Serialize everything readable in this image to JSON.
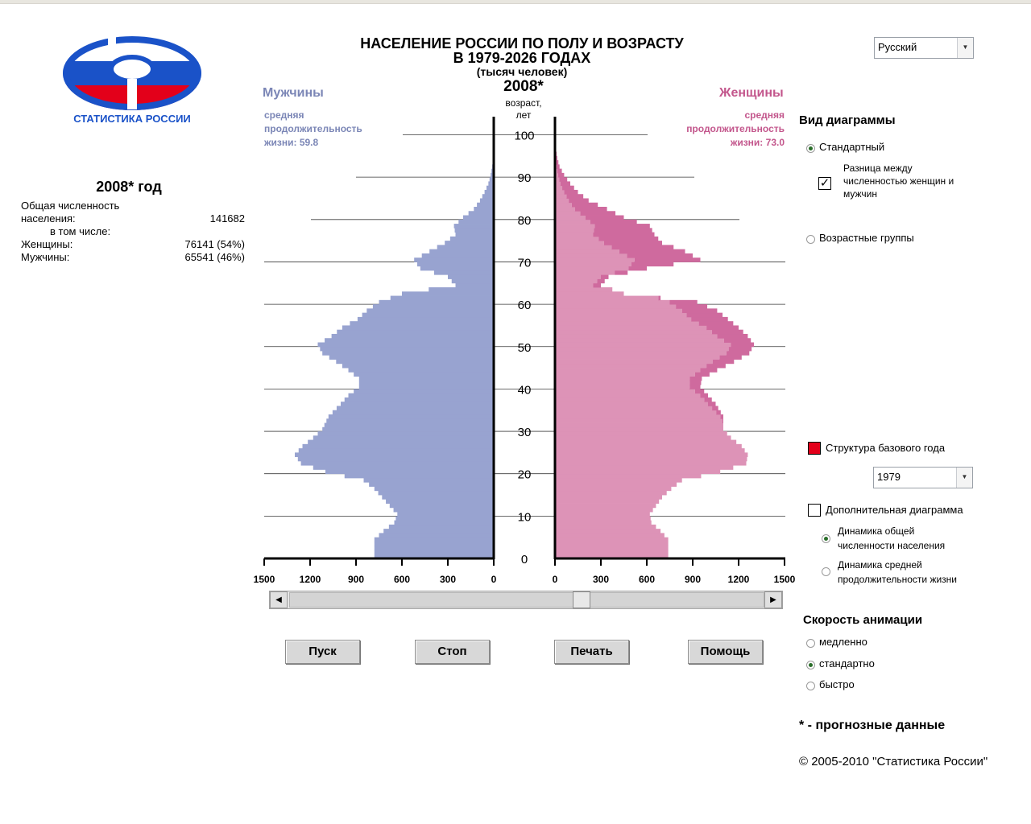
{
  "logo": {
    "text": "СТАТИСТИКА РОССИИ",
    "colors": {
      "blue": "#1a52c8",
      "red": "#e3001a",
      "white": "#ffffff"
    }
  },
  "header": {
    "title_line1": "НАСЕЛЕНИЕ РОССИИ ПО ПОЛУ И ВОЗРАСТУ",
    "title_line2": "В 1979-2026 ГОДАХ",
    "subtitle": "(тысяч человек)",
    "year": "2008*",
    "age_label": "возраст,\nлет"
  },
  "language_select": {
    "value": "Русский"
  },
  "men": {
    "label": "Мужчины",
    "life_label": "средняя продолжительность жизни:",
    "life_value": "59.8",
    "color": "#98a3d0"
  },
  "women": {
    "label": "Женщины",
    "life_label": "средняя продолжительность жизни:",
    "life_value": "73.0",
    "color": "#dd93b7",
    "excess_color": "#cf6a9e"
  },
  "stats": {
    "title": "2008* год",
    "total_label": "Общая численность населения:",
    "total_value": "141682",
    "incl_label": "в том числе:",
    "women_label": "Женщины:",
    "women_value": "76141 (54%)",
    "men_label": "Мужчины:",
    "men_value": "65541 (46%)"
  },
  "chart_type": {
    "title": "Вид диаграммы",
    "standard_label": "Стандартный",
    "standard_selected": true,
    "difference_label": "Разница между численностью женщин и мужчин",
    "difference_checked": true,
    "age_groups_label": "Возрастные группы",
    "age_groups_selected": false
  },
  "base_year": {
    "label": "Структура базового года",
    "checked": true,
    "color": "#e3001a",
    "value": "1979"
  },
  "extra_chart": {
    "label": "Дополнительная диаграмма",
    "checked": false,
    "total_dynamics_label": "Динамика общей численности населения",
    "total_dynamics_selected": true,
    "life_dynamics_label": "Динамика средней продолжительности жизни",
    "life_dynamics_selected": false
  },
  "animation_speed": {
    "title": "Скорость анимации",
    "slow": "медленно",
    "standard": "стандартно",
    "fast": "быстро",
    "selected": "standard"
  },
  "buttons": {
    "start": "Пуск",
    "stop": "Стоп",
    "print": "Печать",
    "help": "Помощь"
  },
  "timeline": {
    "min_year": 1979,
    "max_year": 2026,
    "current_year": 2008
  },
  "footnote": "* - прогнозные данные",
  "copyright": "© 2005-2010 \"Статистика России\"",
  "chart_data": {
    "type": "bar",
    "orientation": "population-pyramid",
    "x_unit": "тысяч человек",
    "xlim": [
      0,
      1500
    ],
    "x_ticks": [
      1500,
      1200,
      900,
      600,
      300,
      0
    ],
    "x_ticks_right": [
      0,
      300,
      600,
      900,
      1200,
      1500
    ],
    "y_ticks": [
      0,
      10,
      20,
      30,
      40,
      50,
      60,
      70,
      80,
      90,
      100
    ],
    "ylim": [
      0,
      100
    ],
    "age_key_points": [
      0,
      4,
      6,
      8,
      10,
      12,
      14,
      16,
      18,
      20,
      22,
      24,
      26,
      28,
      30,
      33,
      36,
      38,
      40,
      42,
      44,
      46,
      48,
      50,
      52,
      54,
      56,
      58,
      60,
      62,
      64,
      66,
      68,
      70,
      72,
      74,
      76,
      78,
      80,
      82,
      84,
      86,
      88,
      90,
      92,
      94,
      96,
      98,
      100
    ],
    "men": [
      780,
      780,
      720,
      650,
      630,
      680,
      730,
      780,
      850,
      1100,
      1260,
      1300,
      1250,
      1180,
      1120,
      1080,
      1000,
      950,
      880,
      880,
      950,
      1030,
      1120,
      1150,
      1060,
      990,
      890,
      830,
      750,
      600,
      250,
      300,
      480,
      520,
      420,
      320,
      250,
      260,
      200,
      130,
      90,
      60,
      35,
      20,
      10,
      5,
      3,
      1,
      0
    ],
    "women": [
      740,
      740,
      690,
      630,
      620,
      660,
      700,
      760,
      830,
      1080,
      1250,
      1260,
      1220,
      1150,
      1100,
      1100,
      1050,
      1000,
      950,
      960,
      1060,
      1170,
      1270,
      1300,
      1260,
      1200,
      1130,
      1060,
      930,
      450,
      300,
      350,
      600,
      950,
      850,
      700,
      650,
      620,
      450,
      340,
      220,
      150,
      100,
      60,
      30,
      15,
      6,
      2,
      0
    ]
  }
}
